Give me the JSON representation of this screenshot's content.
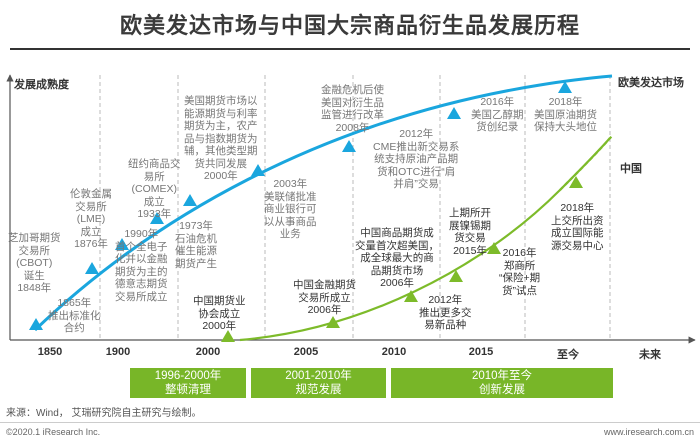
{
  "title": "欧美发达市场与中国大宗商品衍生品发展历程",
  "axis": {
    "y_label": "发展成熟度",
    "series_west": "欧美发达市场",
    "series_china": "中国"
  },
  "years": [
    "1850",
    "1900",
    "2000",
    "2005",
    "2010",
    "2015",
    "至今",
    "未来"
  ],
  "west_events": [
    "芝加哥期货\n交易所\n(CBOT)\n诞生\n1848年",
    "1865年\n推出标准化\n合约",
    "伦敦金属\n交易所\n(LME)\n成立\n1876年",
    "1990年\n首个全电子\n化并以金融\n期货为主的\n德意志期货\n交易所成立",
    "纽约商品交\n易所\n(COMEX)\n成立\n1933年",
    "1973年\n石油危机\n催生能源\n期货产生",
    "美国期货市场以\n能源期货与利率\n期货为主，农产\n品与指数期货为\n辅，其他类型期\n货共同发展\n2000年",
    "2003年\n美联储批准\n商业银行可\n以从事商品\n业务",
    "金融危机后使\n美国对衍生品\n监管进行改革\n2008年",
    "2012年\nCME推出新交易系\n统支持原油产品期\n货和OTC进行“肩\n并肩”交易",
    "2016年\n美国乙醇期\n货创纪录",
    "2018年\n美国原油期货\n保持大头地位"
  ],
  "china_events": [
    "中国期货业\n协会成立\n2000年",
    "中国金融期货\n交易所成立\n2006年",
    "中国商品期货成\n交量首次超美国，\n成全球最大的商\n品期货市场\n2006年",
    "2012年\n推出更多交\n易新品种",
    "上期所开\n展镍锡期\n货交易\n2015年",
    "2016年\n郑商所\n“保险+期\n货”试点",
    "2018年\n上交所出资\n成立国际能\n源交易中心"
  ],
  "phases": [
    {
      "years": "1996-2000年",
      "name": "整顿清理"
    },
    {
      "years": "2001-2010年",
      "name": "规范发展"
    },
    {
      "years": "2010年至今",
      "name": "创新发展"
    }
  ],
  "source": "来源：Wind， 艾瑞研究院自主研究与绘制。",
  "footer_left": "©2020.1 iResearch Inc.",
  "footer_right": "www.iresearch.com.cn",
  "colors": {
    "west": "#1aa6de",
    "china": "#7dbb2a",
    "phase": "#78b628"
  }
}
